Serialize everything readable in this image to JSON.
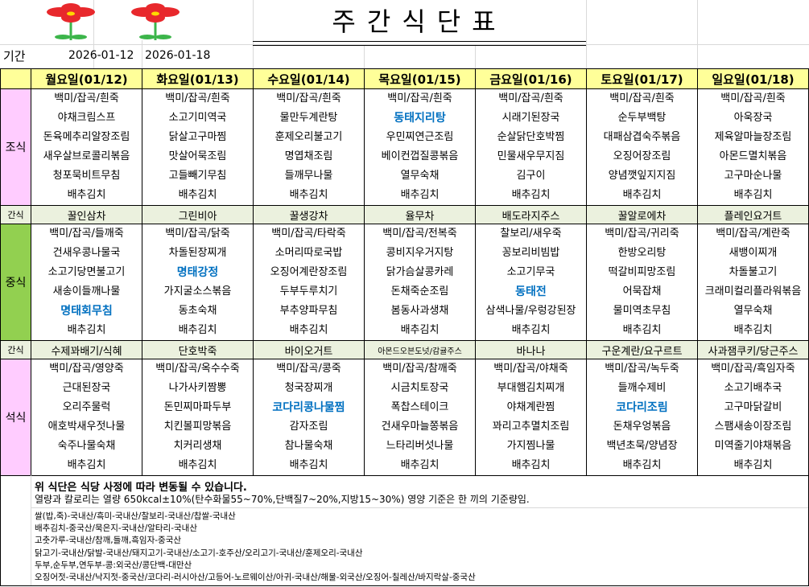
{
  "title": "주간식단표",
  "period": {
    "label": "기간",
    "start": "2026-01-12",
    "end": "2026-01-18"
  },
  "colors": {
    "header": "#ffff99",
    "breakfast_label": "#ffccff",
    "lunch_label": "#92d050",
    "snack": "#ebf1de",
    "highlight": "#0070c0",
    "flower": "#e8282c"
  },
  "logo_icons": [
    "flower-icon",
    "flower-icon"
  ],
  "labels": {
    "breakfast": "조식",
    "snack": "간식",
    "lunch": "중식",
    "dinner": "석식"
  },
  "days": [
    {
      "label": "월요일(01/12)",
      "breakfast": [
        "백미/잡곡/흰죽",
        "야채크림스프",
        "돈육메추리알장조림",
        "새우살브로콜리볶음",
        "청포묵비트무침",
        "배추김치"
      ],
      "snack1": "꿀인삼차",
      "lunch": [
        "백미/잡곡/들깨죽",
        "건새우콩나물국",
        "소고기당면불고기",
        "새송이들깨나물",
        "명태회무침",
        "배추김치"
      ],
      "snack2": "수제꽈배기/식혜",
      "dinner": [
        "백미/잡곡/영양죽",
        "근대된장국",
        "오리주물럭",
        "애호박새우젓나물",
        "숙주나물숙채",
        "배추김치"
      ],
      "highlight": {
        "breakfast": [],
        "lunch": [
          4
        ],
        "dinner": []
      }
    },
    {
      "label": "화요일(01/13)",
      "breakfast": [
        "백미/잡곡/흰죽",
        "소고기미역국",
        "닭살고구마찜",
        "맛살어묵조림",
        "고들빼기무침",
        "배추김치"
      ],
      "snack1": "그린비아",
      "lunch": [
        "백미/잡곡/닭죽",
        "차돌된장찌개",
        "명태강정",
        "가지굴소스볶음",
        "동초숙채",
        "배추김치"
      ],
      "snack2": "단호박죽",
      "dinner": [
        "백미/잡곡/옥수수죽",
        "나가사키짬뽕",
        "돈민찌마파두부",
        "치킨볼피망볶음",
        "치커리생채",
        "배추김치"
      ],
      "highlight": {
        "breakfast": [],
        "lunch": [
          2
        ],
        "dinner": []
      }
    },
    {
      "label": "수요일(01/14)",
      "breakfast": [
        "백미/잡곡/흰죽",
        "물만두계란탕",
        "훈제오리불고기",
        "명엽채조림",
        "들깨무나물",
        "배추김치"
      ],
      "snack1": "꿀생강차",
      "lunch": [
        "백미/잡곡/타락죽",
        "소머리따로국밥",
        "오징어계란장조림",
        "두부두루치기",
        "부추양파무침",
        "배추김치"
      ],
      "snack2": "바이오거트",
      "dinner": [
        "백미/잡곡/콩죽",
        "청국장찌개",
        "코다리콩나물찜",
        "감자조림",
        "참나물숙채",
        "배추김치"
      ],
      "highlight": {
        "breakfast": [],
        "lunch": [],
        "dinner": [
          2
        ]
      }
    },
    {
      "label": "목요일(01/15)",
      "breakfast": [
        "백미/잡곡/흰죽",
        "동태지리탕",
        "우민찌연근조림",
        "베이컨껍질콩볶음",
        "열무숙채",
        "배추김치"
      ],
      "snack1": "율무차",
      "lunch": [
        "백미/잡곡/전복죽",
        "콩비지우거지탕",
        "닭가슴살콩카레",
        "돈채죽순조림",
        "봄동사과생채",
        "배추김치"
      ],
      "snack2": "아몬드오븐도넛/감귤주스",
      "dinner": [
        "백미/잡곡/참깨죽",
        "시금치토장국",
        "폭찹스테이크",
        "건새우마늘쫑볶음",
        "느타리버섯나물",
        "배추김치"
      ],
      "highlight": {
        "breakfast": [
          1
        ],
        "lunch": [],
        "dinner": []
      }
    },
    {
      "label": "금요일(01/16)",
      "breakfast": [
        "백미/잡곡/흰죽",
        "시래기된장국",
        "순살닭단호박찜",
        "민물새우무지짐",
        "김구이",
        "배추김치"
      ],
      "snack1": "배도라지주스",
      "lunch": [
        "찰보리/새우죽",
        "꽁보리비빔밥",
        "소고기무국",
        "동태전",
        "삼색나물/우렁강된장",
        "배추김치"
      ],
      "snack2": "바나나",
      "dinner": [
        "백미/잡곡/야채죽",
        "부대햄김치찌개",
        "야채계란찜",
        "꽈리고추멸치조림",
        "가지찜나물",
        "배추김치"
      ],
      "highlight": {
        "breakfast": [],
        "lunch": [
          3
        ],
        "dinner": []
      }
    },
    {
      "label": "토요일(01/17)",
      "breakfast": [
        "백미/잡곡/흰죽",
        "순두부백탕",
        "대패삼겹숙주볶음",
        "오징어장조림",
        "양념깻잎지지짐",
        "배추김치"
      ],
      "snack1": "꿀알로에차",
      "lunch": [
        "백미/잡곡/귀리죽",
        "한방오리탕",
        "떡갈비피망조림",
        "어묵잡채",
        "물미역초무침",
        "배추김치"
      ],
      "snack2": "구운계란/요구르트",
      "dinner": [
        "백미/잡곡/녹두죽",
        "들깨수제비",
        "코다리조림",
        "돈채우엉볶음",
        "백년초묵/양념장",
        "배추김치"
      ],
      "highlight": {
        "breakfast": [],
        "lunch": [],
        "dinner": [
          2
        ]
      }
    },
    {
      "label": "일요일(01/18)",
      "breakfast": [
        "백미/잡곡/흰죽",
        "아욱장국",
        "제육알마늘장조림",
        "아몬드멸치볶음",
        "고구마순나물",
        "배추김치"
      ],
      "snack1": "플레인요거트",
      "lunch": [
        "백미/잡곡/계란죽",
        "새뱅이찌개",
        "차돌불고기",
        "크래미컬리플라워볶음",
        "열무숙채",
        "배추김치"
      ],
      "snack2": "사과잼쿠키/당근주스",
      "dinner": [
        "백미/잡곡/흑임자죽",
        "소고기배추국",
        "고구마닭갈비",
        "스팸새송이장조림",
        "미역줄기야채볶음",
        "배추김치"
      ],
      "highlight": {
        "breakfast": [],
        "lunch": [],
        "dinner": []
      }
    }
  ],
  "notes": {
    "notice": "위 식단은 식당 사정에 따라 변동될 수 있습니다.",
    "nutrition": "열량과 칼로리는 열량 650kcal±10%(탄수화물55~70%,단백질7~20%,지방15~30%) 영양 기준은 한 끼의 기준량임.",
    "origin": [
      "쌀(밥,죽)-국내산/흑미-국내산/찰보리-국내산/찹쌀-국내산",
      "배추김치-중국산/묵은지-국내산/알타리-국내산",
      "고춧가루-국내산/참깨,들깨,흑임자-중국산",
      "닭고기-국내산/닭발-국내산/돼지고기-국내산/소고기-호주산/오리고기-국내산/훈제오리-국내산",
      "두부,순두부,연두부-콩:외국산/콩단백-대만산",
      "오징어젓-국내산/낙지젓-중국산/코다리-러시아산/고등어-노르웨이산/아귀-국내산/해물-외국산/오징어-칠레산/바지락살-중국산"
    ]
  }
}
